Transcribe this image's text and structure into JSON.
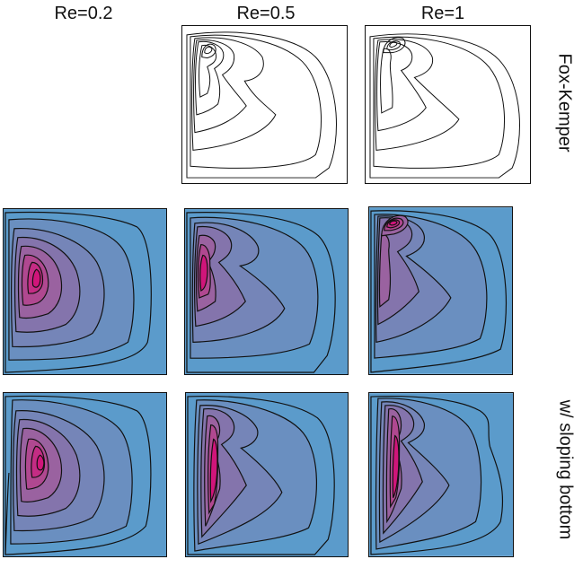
{
  "columns": [
    "Re=0.2",
    "Re=0.5",
    "Re=1"
  ],
  "rows": [
    "Fox-Kemper",
    "",
    "w/ sloping bottom"
  ],
  "colors": {
    "outline_background": "#ffffff",
    "filled_background": "#5b9bcb",
    "mid_shade": "#8070a8",
    "core_shade": "#d0157a",
    "contour_line": "#111111"
  }
}
